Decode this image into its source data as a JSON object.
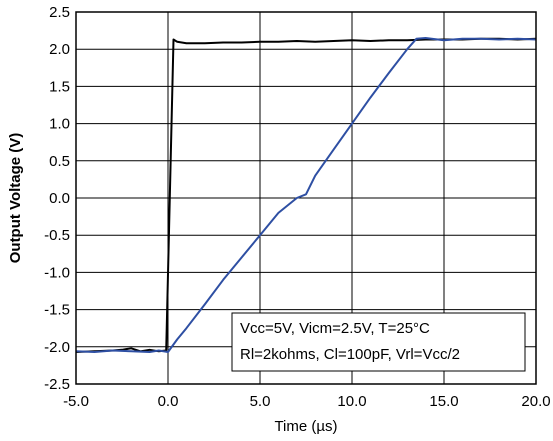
{
  "chart_data": {
    "type": "line",
    "xlabel": "Time (µs)",
    "ylabel": "Output Voltage (V)",
    "xlim": [
      -5.0,
      20.0
    ],
    "ylim": [
      -2.5,
      2.5
    ],
    "xticks": [
      -5.0,
      0.0,
      5.0,
      10.0,
      15.0,
      20.0
    ],
    "xtick_labels": [
      "-5.0",
      "0.0",
      "5.0",
      "10.0",
      "15.0",
      "20.0"
    ],
    "yticks": [
      2.5,
      2.0,
      1.5,
      1.0,
      0.5,
      0.0,
      -0.5,
      -1.0,
      -1.5,
      -2.0,
      -2.5
    ],
    "ytick_labels": [
      "2.5",
      "2.0",
      "1.5",
      "1.0",
      "0.5",
      "0.0",
      "-0.5",
      "-1.0",
      "-1.5",
      "-2.0",
      "-2.5"
    ],
    "grid": true,
    "annotation_lines": [
      "Vcc=5V, Vicm=2.5V, T=25°C",
      "Rl=2kohms, Cl=100pF, Vrl=Vcc/2"
    ],
    "series": [
      {
        "color": "#000000",
        "x": [
          -5.0,
          -4.0,
          -3.0,
          -2.5,
          -2.0,
          -1.5,
          -1.0,
          -0.5,
          -0.1,
          0.3,
          0.5,
          1.0,
          2.0,
          3.0,
          4.0,
          5.0,
          6.0,
          7.0,
          8.0,
          9.0,
          10.0,
          11.0,
          12.0,
          13.0,
          14.0,
          15.0,
          16.0,
          17.0,
          18.0,
          19.0,
          20.0
        ],
        "y": [
          -2.07,
          -2.06,
          -2.05,
          -2.04,
          -2.02,
          -2.06,
          -2.04,
          -2.06,
          -2.05,
          2.13,
          2.1,
          2.08,
          2.08,
          2.09,
          2.09,
          2.1,
          2.1,
          2.11,
          2.1,
          2.11,
          2.12,
          2.11,
          2.12,
          2.12,
          2.13,
          2.13,
          2.13,
          2.14,
          2.14,
          2.13,
          2.14
        ]
      },
      {
        "color": "#2e4fa3",
        "x": [
          -5.0,
          -4.0,
          -3.0,
          -2.0,
          -1.0,
          -0.5,
          0.0,
          0.5,
          1.0,
          2.0,
          3.0,
          4.0,
          5.0,
          6.0,
          7.0,
          7.5,
          8.0,
          9.0,
          10.0,
          11.0,
          12.0,
          13.0,
          13.5,
          14.0,
          15.0,
          16.0,
          17.0,
          18.0,
          19.0,
          20.0
        ],
        "y": [
          -2.06,
          -2.07,
          -2.05,
          -2.06,
          -2.07,
          -2.05,
          -2.07,
          -1.9,
          -1.75,
          -1.43,
          -1.1,
          -0.8,
          -0.5,
          -0.2,
          0.0,
          0.05,
          0.3,
          0.65,
          1.0,
          1.35,
          1.68,
          2.0,
          2.14,
          2.15,
          2.12,
          2.14,
          2.14,
          2.13,
          2.14,
          2.13
        ]
      }
    ]
  }
}
